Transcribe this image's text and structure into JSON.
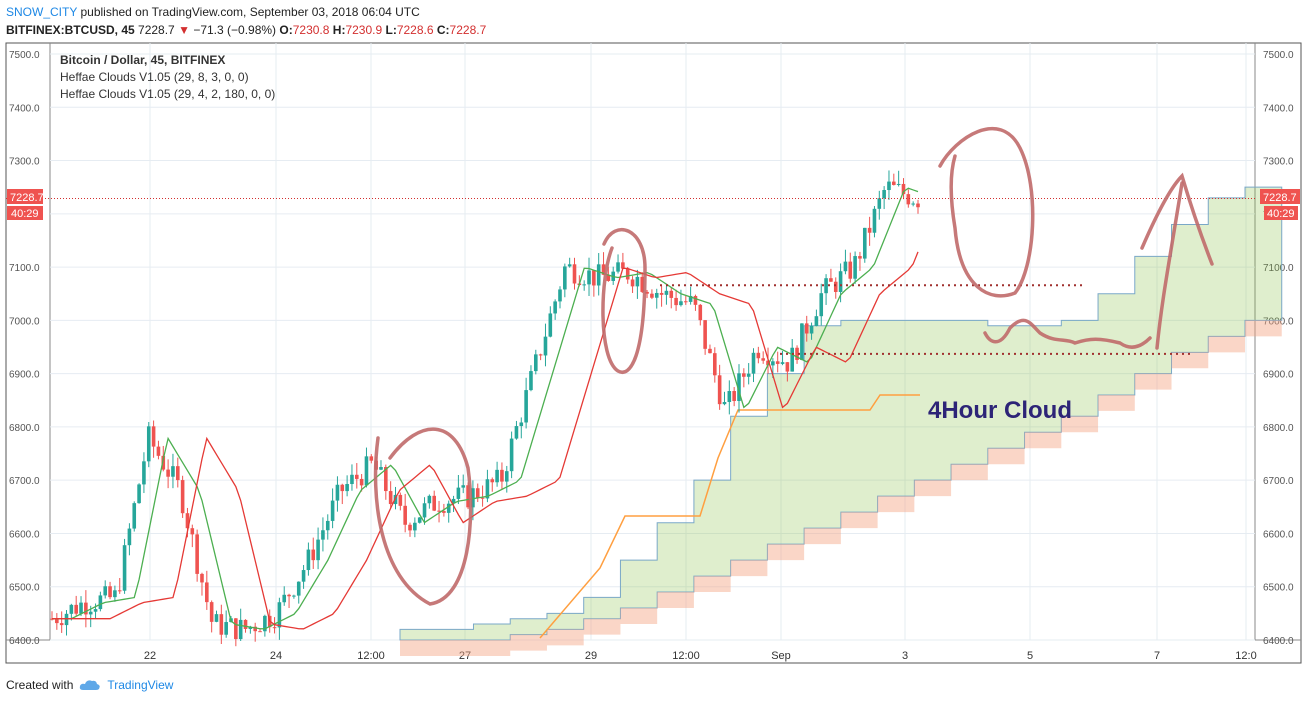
{
  "header": {
    "username": "SNOW_CITY",
    "published_text": "published on TradingView.com, September 03, 2018 06:04 UTC",
    "symbol_line": "BITFINEX:BTCUSD, 45",
    "last_price": "7228.7",
    "change": "−71.3 (−0.98%)",
    "o_label": "O:",
    "o_value": "7230.8",
    "h_label": "H:",
    "h_value": "7230.9",
    "l_label": "L:",
    "l_value": "7228.6",
    "c_label": "C:",
    "c_value": "7228.7"
  },
  "legend": {
    "title": "Bitcoin / Dollar, 45, BITFINEX",
    "indicator1": "Heffae Clouds V1.05 (29, 8, 3, 0, 0)",
    "indicator2": "Heffae Clouds V1.05 (29, 4, 2, 180, 0, 0)"
  },
  "price_tag": {
    "price": "7228.7",
    "countdown": "40:29"
  },
  "annotation": {
    "cloud_label": "4Hour Cloud"
  },
  "footer": {
    "created_with": "Created with",
    "brand": "TradingView"
  },
  "colors": {
    "up": "#26a69a",
    "down": "#ef5350",
    "cloud_green": "#8bc34a",
    "cloud_red": "#f4a582",
    "drawing": "#c0504d",
    "price_line": "#d32f2f",
    "label": "#2d2477"
  },
  "chart_data": {
    "type": "candlestick",
    "yaxis_ticks": [
      6400,
      6500,
      6600,
      6700,
      6800,
      6900,
      7000,
      7100,
      7200,
      7300,
      7400,
      7500
    ],
    "yaxis_labels": [
      "6400.0",
      "6500.0",
      "6600.0",
      "6700.0",
      "6800.0",
      "6900.0",
      "7000.0",
      "7100.0",
      "7200.0",
      "7300.0",
      "7400.0",
      "7500.0"
    ],
    "ylim": [
      6400,
      7500
    ],
    "xaxis_labels": [
      "22",
      "24",
      "12:00",
      "27",
      "29",
      "12:00",
      "Sep",
      "3",
      "5",
      "7",
      "12:0"
    ],
    "close_path": [
      {
        "d": "Aug 20",
        "c": 6440
      },
      {
        "d": "Aug 21",
        "c": 6470
      },
      {
        "d": "Aug 21 12h",
        "c": 6480
      },
      {
        "d": "Aug 22",
        "c": 6780
      },
      {
        "d": "Aug 22 12h",
        "c": 6680
      },
      {
        "d": "Aug 23",
        "c": 6430
      },
      {
        "d": "Aug 23 12h",
        "c": 6420
      },
      {
        "d": "Aug 24",
        "c": 6450
      },
      {
        "d": "Aug 24 12h",
        "c": 6550
      },
      {
        "d": "Aug 25",
        "c": 6680
      },
      {
        "d": "Aug 25 12h",
        "c": 6730
      },
      {
        "d": "Aug 26",
        "c": 6620
      },
      {
        "d": "Aug 26 12h",
        "c": 6660
      },
      {
        "d": "Aug 27",
        "c": 6670
      },
      {
        "d": "Aug 27 12h",
        "c": 6700
      },
      {
        "d": "Aug 28",
        "c": 6900
      },
      {
        "d": "Aug 28 12h",
        "c": 7100
      },
      {
        "d": "Aug 29",
        "c": 7080
      },
      {
        "d": "Aug 29 12h",
        "c": 7090
      },
      {
        "d": "Aug 30",
        "c": 7050
      },
      {
        "d": "Aug 30 12h",
        "c": 7030
      },
      {
        "d": "Aug 31",
        "c": 6830
      },
      {
        "d": "Aug 31 12h",
        "c": 6950
      },
      {
        "d": "Sep 1",
        "c": 6920
      },
      {
        "d": "Sep 1 12h",
        "c": 7050
      },
      {
        "d": "Sep 2",
        "c": 7100
      },
      {
        "d": "Sep 2 12h",
        "c": 7250
      },
      {
        "d": "Sep 3",
        "c": 7229
      }
    ],
    "current_price": 7228.7,
    "resistance_level": 7066,
    "support_level": 6937,
    "cloud_upper_4h": [
      6420,
      6420,
      6430,
      6440,
      6450,
      6480,
      6550,
      6620,
      6700,
      6820,
      6900,
      6990,
      7000,
      7000,
      7000,
      7000,
      6990,
      6990,
      7000,
      7050,
      7120,
      7180,
      7230,
      7250
    ],
    "cloud_lower_4h": [
      6400,
      6400,
      6400,
      6410,
      6420,
      6440,
      6460,
      6490,
      6520,
      6550,
      6580,
      6610,
      6640,
      6670,
      6700,
      6730,
      6760,
      6790,
      6820,
      6860,
      6900,
      6940,
      6970,
      7000
    ]
  }
}
